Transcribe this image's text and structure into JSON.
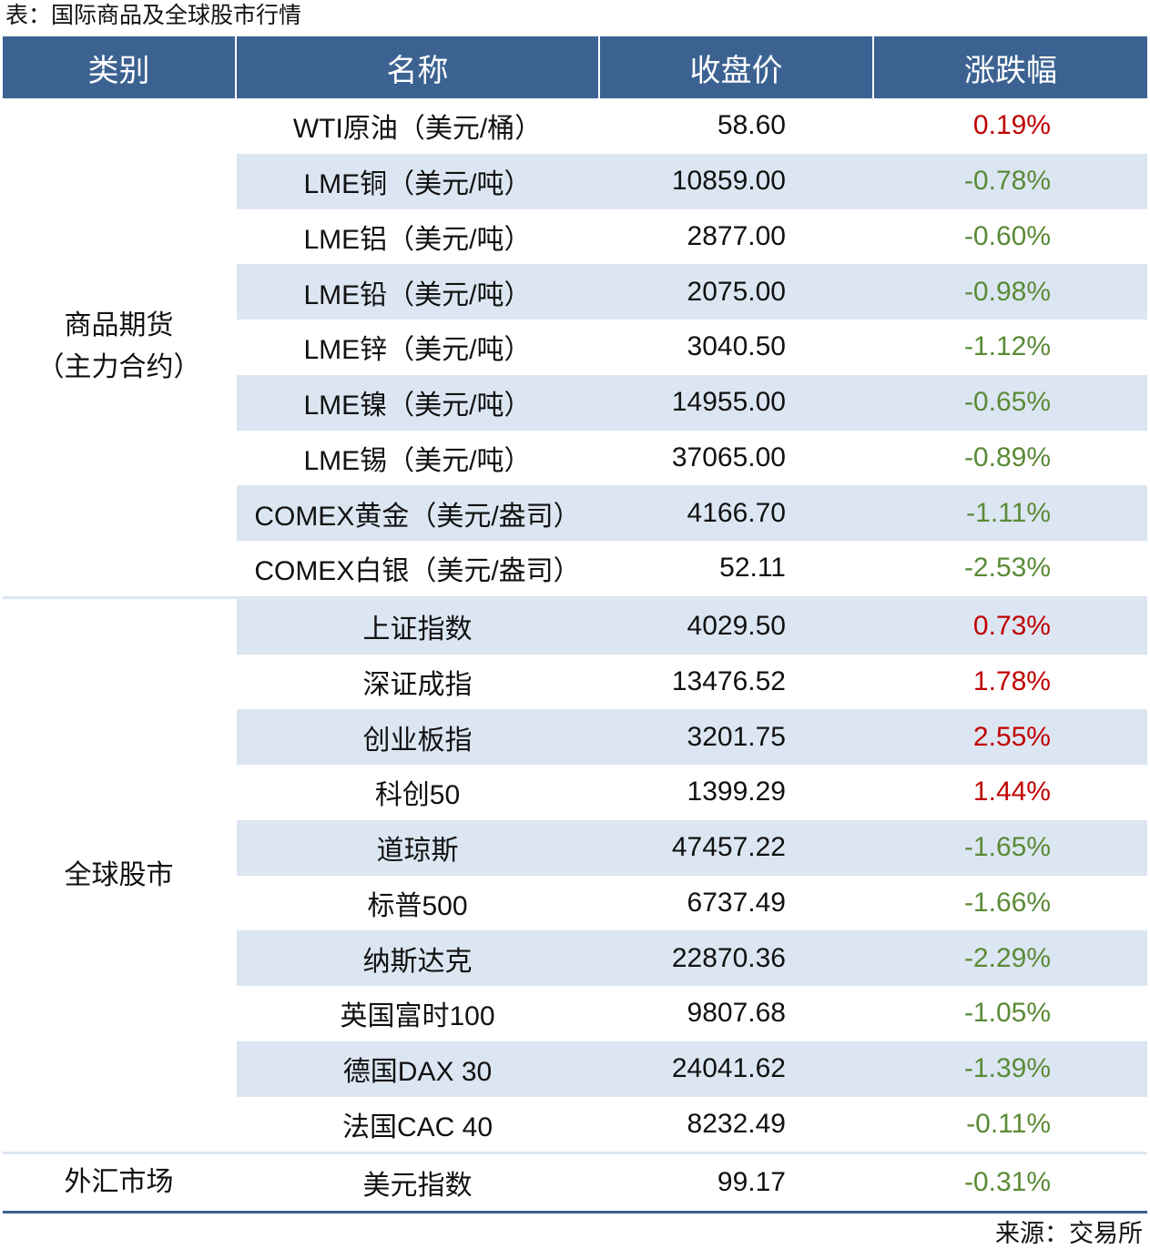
{
  "title": "表：国际商品及全球股市行情",
  "header": [
    "类别",
    "名称",
    "收盘价",
    "涨跌幅"
  ],
  "colors": {
    "header": "#3b6291",
    "stripe": "#dce6f2",
    "up": "#c00000",
    "down": "#5a8a36",
    "rule": "#3b6291"
  },
  "groups": [
    {
      "category": [
        "商品期货",
        "（主力合约）"
      ],
      "rows": [
        [
          "WTI原油（美元/桶）",
          "58.60",
          "0.19%"
        ],
        [
          "LME铜（美元/吨）",
          "10859.00",
          "-0.78%"
        ],
        [
          "LME铝（美元/吨）",
          "2877.00",
          "-0.60%"
        ],
        [
          "LME铅（美元/吨）",
          "2075.00",
          "-0.98%"
        ],
        [
          "LME锌（美元/吨）",
          "3040.50",
          "-1.12%"
        ],
        [
          "LME镍（美元/吨）",
          "14955.00",
          "-0.65%"
        ],
        [
          "LME锡（美元/吨）",
          "37065.00",
          "-0.89%"
        ],
        [
          "COMEX黄金（美元/盎司）",
          "4166.70",
          "-1.11%"
        ],
        [
          "COMEX白银（美元/盎司）",
          "52.11",
          "-2.53%"
        ]
      ]
    },
    {
      "category": [
        "全球股市"
      ],
      "rows": [
        [
          "上证指数",
          "4029.50",
          "0.73%"
        ],
        [
          "深证成指",
          "13476.52",
          "1.78%"
        ],
        [
          "创业板指",
          "3201.75",
          "2.55%"
        ],
        [
          "科创50",
          "1399.29",
          "1.44%"
        ],
        [
          "道琼斯",
          "47457.22",
          "-1.65%"
        ],
        [
          "标普500",
          "6737.49",
          "-1.66%"
        ],
        [
          "纳斯达克",
          "22870.36",
          "-2.29%"
        ],
        [
          "英国富时100",
          "9807.68",
          "-1.05%"
        ],
        [
          "德国DAX 30",
          "24041.62",
          "-1.39%"
        ],
        [
          "法国CAC 40",
          "8232.49",
          "-0.11%"
        ]
      ]
    },
    {
      "category": [
        "外汇市场"
      ],
      "rows": [
        [
          "美元指数",
          "99.17",
          "-0.31%"
        ]
      ]
    }
  ],
  "source": "来源：交易所"
}
